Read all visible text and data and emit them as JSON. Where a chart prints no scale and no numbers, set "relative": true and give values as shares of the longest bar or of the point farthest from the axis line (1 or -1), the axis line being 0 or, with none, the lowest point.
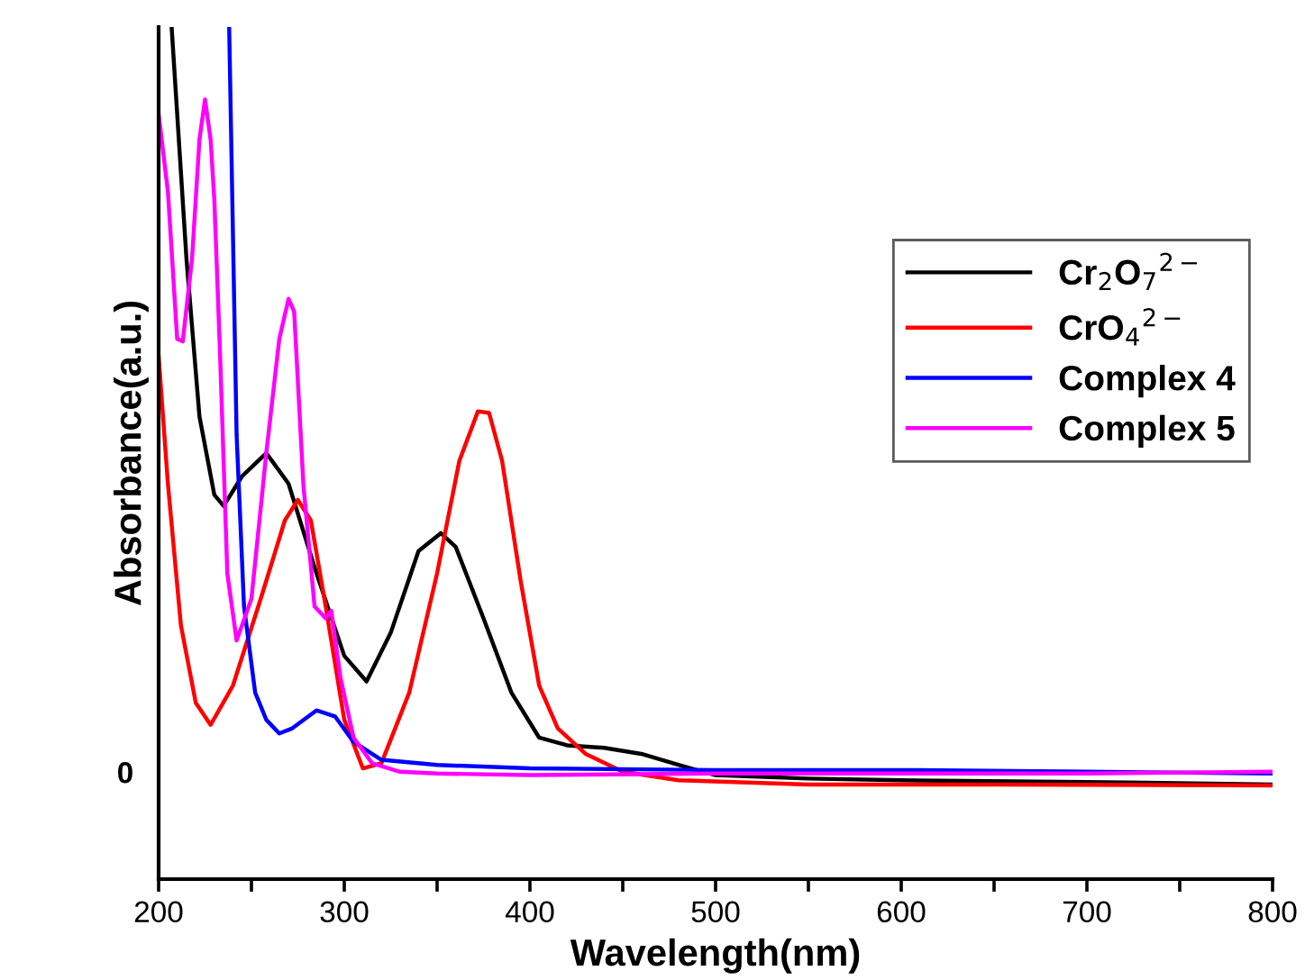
{
  "chart_data": {
    "type": "line",
    "xlabel": "Wavelength(nm)",
    "ylabel": "Absorbance(a.u.)",
    "relative": true,
    "xlim": [
      200,
      800
    ],
    "xticks": [
      200,
      {
        "value": 250,
        "label": null
      },
      300,
      {
        "value": 350,
        "label": null
      },
      400,
      {
        "value": 450,
        "label": null
      },
      500,
      {
        "value": 550,
        "label": null
      },
      600,
      {
        "value": 650,
        "label": null
      },
      700,
      {
        "value": 750,
        "label": null
      },
      800
    ],
    "annotations": [
      "0"
    ],
    "legend": "right",
    "grid": false,
    "marker": "none",
    "line_style": "solid",
    "series": [
      {
        "name": "Cr$_{2}$O$_{7}$$^{2−}$",
        "color": "#000000",
        "x": [
          207,
          215,
          222,
          230,
          235,
          245,
          258,
          270,
          285,
          300,
          312,
          325,
          340,
          352,
          360,
          375,
          390,
          405,
          420,
          440,
          460,
          480,
          500,
          550,
          600,
          700,
          800
        ],
        "values": [
          1.0,
          0.728,
          0.543,
          0.451,
          0.438,
          0.473,
          0.5,
          0.464,
          0.359,
          0.262,
          0.232,
          0.289,
          0.385,
          0.406,
          0.39,
          0.306,
          0.219,
          0.166,
          0.157,
          0.154,
          0.147,
          0.134,
          0.122,
          0.118,
          0.116,
          0.114,
          0.111
        ]
      },
      {
        "name": "CrO$_{4}$$^{2−}$",
        "color": "#ff0000",
        "x": [
          200,
          205,
          212,
          220,
          228,
          240,
          255,
          268,
          275,
          282,
          290,
          300,
          310,
          320,
          335,
          350,
          362,
          372,
          378,
          385,
          395,
          405,
          415,
          430,
          450,
          480,
          550,
          650,
          800
        ],
        "values": [
          0.614,
          0.464,
          0.298,
          0.207,
          0.181,
          0.227,
          0.329,
          0.421,
          0.445,
          0.421,
          0.32,
          0.187,
          0.13,
          0.136,
          0.219,
          0.359,
          0.491,
          0.549,
          0.547,
          0.491,
          0.35,
          0.227,
          0.177,
          0.147,
          0.126,
          0.116,
          0.111,
          0.111,
          0.11
        ]
      },
      {
        "name": "Complex 4",
        "color": "#0000ff",
        "x": [
          238,
          242,
          246,
          252,
          258,
          265,
          272,
          285,
          295,
          305,
          320,
          350,
          400,
          500,
          600,
          700,
          800
        ],
        "values": [
          1.0,
          0.522,
          0.32,
          0.219,
          0.187,
          0.171,
          0.177,
          0.198,
          0.191,
          0.161,
          0.14,
          0.134,
          0.13,
          0.128,
          0.128,
          0.126,
          0.124
        ]
      },
      {
        "name": "Complex 5",
        "color": "#ff00ff",
        "x": [
          200,
          205,
          210,
          213,
          218,
          222,
          225,
          228,
          230,
          233,
          237,
          242,
          250,
          258,
          265,
          270,
          273,
          278,
          284,
          290,
          293,
          298,
          305,
          315,
          330,
          350,
          400,
          500,
          600,
          700,
          800
        ],
        "values": [
          0.898,
          0.807,
          0.634,
          0.631,
          0.728,
          0.868,
          0.915,
          0.868,
          0.798,
          0.622,
          0.359,
          0.28,
          0.329,
          0.5,
          0.634,
          0.681,
          0.666,
          0.462,
          0.32,
          0.306,
          0.315,
          0.236,
          0.166,
          0.136,
          0.126,
          0.124,
          0.122,
          0.124,
          0.124,
          0.124,
          0.126
        ]
      }
    ]
  }
}
